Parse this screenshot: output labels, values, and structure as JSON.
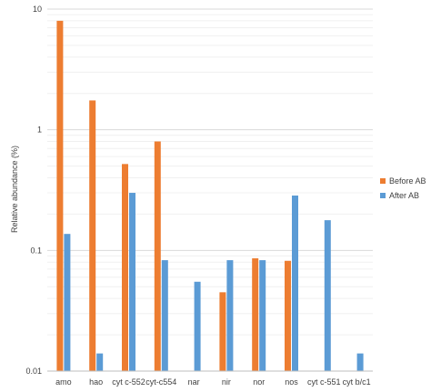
{
  "chart_data": {
    "type": "bar",
    "title": "",
    "xlabel": "",
    "ylabel": "Relative abundance (%)",
    "yscale": "log",
    "ylim": [
      0.01,
      10
    ],
    "yticks": [
      {
        "value": 0.01,
        "label": "0.01"
      },
      {
        "value": 0.1,
        "label": "0.1"
      },
      {
        "value": 1,
        "label": "1"
      },
      {
        "value": 10,
        "label": "10"
      }
    ],
    "grid": true,
    "legend_position": "right",
    "categories": [
      "amo",
      "hao",
      "cyt c-552",
      "cyt-c554",
      "nar",
      "nir",
      "nor",
      "nos",
      "cyt c-551",
      "cyt b/c1"
    ],
    "series": [
      {
        "name": "Before AB",
        "color": "#ED7D31",
        "values": [
          8.0,
          1.75,
          0.52,
          0.8,
          null,
          0.045,
          0.086,
          0.082,
          null,
          null
        ]
      },
      {
        "name": "After AB",
        "color": "#5B9BD5",
        "values": [
          0.137,
          0.014,
          0.3,
          0.083,
          0.055,
          0.083,
          0.083,
          0.285,
          0.178,
          0.014
        ]
      }
    ]
  }
}
